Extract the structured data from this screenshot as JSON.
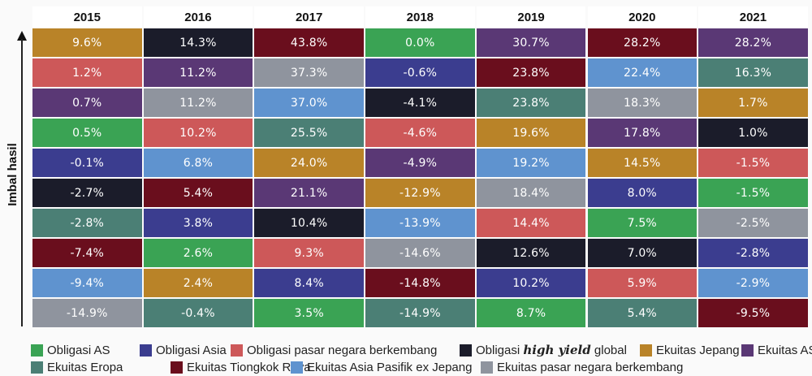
{
  "chart_data": {
    "type": "table",
    "title": "",
    "ylabel": "Imbal hasil",
    "categories": [
      "2015",
      "2016",
      "2017",
      "2018",
      "2019",
      "2020",
      "2021"
    ],
    "asset_classes": {
      "obligasi_as": {
        "label": "Obligasi AS",
        "color": "#3aa354"
      },
      "obligasi_asia": {
        "label": "Obligasi Asia",
        "color": "#3b3d8f"
      },
      "obligasi_em": {
        "label": "Obligasi pasar negara berkembang",
        "color": "#cd5859"
      },
      "obligasi_hy": {
        "label_pre": "Obligasi ",
        "label_em": "high yield",
        "label_post": " global",
        "color": "#1b1c2a"
      },
      "ekuitas_jepang": {
        "label": "Ekuitas Jepang",
        "color": "#b98328"
      },
      "ekuitas_as": {
        "label": "Ekuitas AS",
        "color": "#5a3875"
      },
      "ekuitas_eropa": {
        "label": "Ekuitas Eropa",
        "color": "#4b7f75"
      },
      "ekuitas_tiongkok": {
        "label": "Ekuitas Tiongkok Raya",
        "color": "#6a0e1d"
      },
      "ekuitas_apac": {
        "label": "Ekuitas Asia Pasifik ex Jepang",
        "color": "#5f93cf"
      },
      "ekuitas_em": {
        "label": "Ekuitas pasar negara berkembang",
        "color": "#8f949e"
      }
    },
    "columns": [
      {
        "year": "2015",
        "cells": [
          {
            "asset": "ekuitas_jepang",
            "value": 9.6,
            "text": "9.6%"
          },
          {
            "asset": "obligasi_em",
            "value": 1.2,
            "text": "1.2%"
          },
          {
            "asset": "ekuitas_as",
            "value": 0.7,
            "text": "0.7%"
          },
          {
            "asset": "obligasi_as",
            "value": 0.5,
            "text": "0.5%"
          },
          {
            "asset": "obligasi_asia",
            "value": -0.1,
            "text": "-0.1%"
          },
          {
            "asset": "obligasi_hy",
            "value": -2.7,
            "text": "-2.7%"
          },
          {
            "asset": "ekuitas_eropa",
            "value": -2.8,
            "text": "-2.8%"
          },
          {
            "asset": "ekuitas_tiongkok",
            "value": -7.4,
            "text": "-7.4%"
          },
          {
            "asset": "ekuitas_apac",
            "value": -9.4,
            "text": "-9.4%"
          },
          {
            "asset": "ekuitas_em",
            "value": -14.9,
            "text": "-14.9%"
          }
        ]
      },
      {
        "year": "2016",
        "cells": [
          {
            "asset": "obligasi_hy",
            "value": 14.3,
            "text": "14.3%"
          },
          {
            "asset": "ekuitas_as",
            "value": 11.2,
            "text": "11.2%"
          },
          {
            "asset": "ekuitas_em",
            "value": 11.2,
            "text": "11.2%"
          },
          {
            "asset": "obligasi_em",
            "value": 10.2,
            "text": "10.2%"
          },
          {
            "asset": "ekuitas_apac",
            "value": 6.8,
            "text": "6.8%"
          },
          {
            "asset": "ekuitas_tiongkok",
            "value": 5.4,
            "text": "5.4%"
          },
          {
            "asset": "obligasi_asia",
            "value": 3.8,
            "text": "3.8%"
          },
          {
            "asset": "obligasi_as",
            "value": 2.6,
            "text": "2.6%"
          },
          {
            "asset": "ekuitas_jepang",
            "value": 2.4,
            "text": "2.4%"
          },
          {
            "asset": "ekuitas_eropa",
            "value": -0.4,
            "text": "-0.4%"
          }
        ]
      },
      {
        "year": "2017",
        "cells": [
          {
            "asset": "ekuitas_tiongkok",
            "value": 43.8,
            "text": "43.8%"
          },
          {
            "asset": "ekuitas_em",
            "value": 37.3,
            "text": "37.3%"
          },
          {
            "asset": "ekuitas_apac",
            "value": 37.0,
            "text": "37.0%"
          },
          {
            "asset": "ekuitas_eropa",
            "value": 25.5,
            "text": "25.5%"
          },
          {
            "asset": "ekuitas_jepang",
            "value": 24.0,
            "text": "24.0%"
          },
          {
            "asset": "ekuitas_as",
            "value": 21.1,
            "text": "21.1%"
          },
          {
            "asset": "obligasi_hy",
            "value": 10.4,
            "text": "10.4%"
          },
          {
            "asset": "obligasi_em",
            "value": 9.3,
            "text": "9.3%"
          },
          {
            "asset": "obligasi_asia",
            "value": 8.4,
            "text": "8.4%"
          },
          {
            "asset": "obligasi_as",
            "value": 3.5,
            "text": "3.5%"
          }
        ]
      },
      {
        "year": "2018",
        "cells": [
          {
            "asset": "obligasi_as",
            "value": 0.0,
            "text": "0.0%"
          },
          {
            "asset": "obligasi_asia",
            "value": -0.6,
            "text": "-0.6%"
          },
          {
            "asset": "obligasi_hy",
            "value": -4.1,
            "text": "-4.1%"
          },
          {
            "asset": "obligasi_em",
            "value": -4.6,
            "text": "-4.6%"
          },
          {
            "asset": "ekuitas_as",
            "value": -4.9,
            "text": "-4.9%"
          },
          {
            "asset": "ekuitas_jepang",
            "value": -12.9,
            "text": "-12.9%"
          },
          {
            "asset": "ekuitas_apac",
            "value": -13.9,
            "text": "-13.9%"
          },
          {
            "asset": "ekuitas_em",
            "value": -14.6,
            "text": "-14.6%"
          },
          {
            "asset": "ekuitas_tiongkok",
            "value": -14.8,
            "text": "-14.8%"
          },
          {
            "asset": "ekuitas_eropa",
            "value": -14.9,
            "text": "-14.9%"
          }
        ]
      },
      {
        "year": "2019",
        "cells": [
          {
            "asset": "ekuitas_as",
            "value": 30.7,
            "text": "30.7%"
          },
          {
            "asset": "ekuitas_tiongkok",
            "value": 23.8,
            "text": "23.8%"
          },
          {
            "asset": "ekuitas_eropa",
            "value": 23.8,
            "text": "23.8%"
          },
          {
            "asset": "ekuitas_jepang",
            "value": 19.6,
            "text": "19.6%"
          },
          {
            "asset": "ekuitas_apac",
            "value": 19.2,
            "text": "19.2%"
          },
          {
            "asset": "ekuitas_em",
            "value": 18.4,
            "text": "18.4%"
          },
          {
            "asset": "obligasi_em",
            "value": 14.4,
            "text": "14.4%"
          },
          {
            "asset": "obligasi_hy",
            "value": 12.6,
            "text": "12.6%"
          },
          {
            "asset": "obligasi_asia",
            "value": 10.2,
            "text": "10.2%"
          },
          {
            "asset": "obligasi_as",
            "value": 8.7,
            "text": "8.7%"
          }
        ]
      },
      {
        "year": "2020",
        "cells": [
          {
            "asset": "ekuitas_tiongkok",
            "value": 28.2,
            "text": "28.2%"
          },
          {
            "asset": "ekuitas_apac",
            "value": 22.4,
            "text": "22.4%"
          },
          {
            "asset": "ekuitas_em",
            "value": 18.3,
            "text": "18.3%"
          },
          {
            "asset": "ekuitas_as",
            "value": 17.8,
            "text": "17.8%"
          },
          {
            "asset": "ekuitas_jepang",
            "value": 14.5,
            "text": "14.5%"
          },
          {
            "asset": "obligasi_asia",
            "value": 8.0,
            "text": "8.0%"
          },
          {
            "asset": "obligasi_as",
            "value": 7.5,
            "text": "7.5%"
          },
          {
            "asset": "obligasi_hy",
            "value": 7.0,
            "text": "7.0%"
          },
          {
            "asset": "obligasi_em",
            "value": 5.9,
            "text": "5.9%"
          },
          {
            "asset": "ekuitas_eropa",
            "value": 5.4,
            "text": "5.4%"
          }
        ]
      },
      {
        "year": "2021",
        "cells": [
          {
            "asset": "ekuitas_as",
            "value": 28.2,
            "text": "28.2%"
          },
          {
            "asset": "ekuitas_eropa",
            "value": 16.3,
            "text": "16.3%"
          },
          {
            "asset": "ekuitas_jepang",
            "value": 1.7,
            "text": "1.7%"
          },
          {
            "asset": "obligasi_hy",
            "value": 1.0,
            "text": "1.0%"
          },
          {
            "asset": "obligasi_em",
            "value": -1.5,
            "text": "-1.5%"
          },
          {
            "asset": "obligasi_as",
            "value": -1.5,
            "text": "-1.5%"
          },
          {
            "asset": "ekuitas_em",
            "value": -2.5,
            "text": "-2.5%"
          },
          {
            "asset": "obligasi_asia",
            "value": -2.8,
            "text": "-2.8%"
          },
          {
            "asset": "ekuitas_apac",
            "value": -2.9,
            "text": "-2.9%"
          },
          {
            "asset": "ekuitas_tiongkok",
            "value": -9.5,
            "text": "-9.5%"
          }
        ]
      }
    ],
    "legend": {
      "placement": "bottom",
      "rows": [
        [
          "obligasi_as",
          "obligasi_asia",
          "obligasi_em",
          "obligasi_hy",
          "ekuitas_jepang",
          "ekuitas_as"
        ],
        [
          "ekuitas_eropa",
          "ekuitas_tiongkok",
          "ekuitas_apac",
          "ekuitas_em"
        ]
      ]
    }
  }
}
